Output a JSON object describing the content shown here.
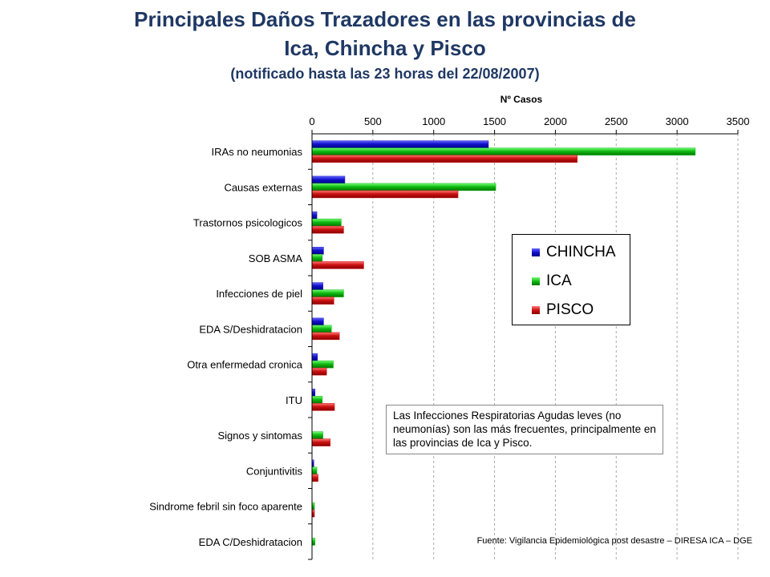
{
  "title_line1": "Principales Daños Trazadores en las provincias de",
  "title_line2": "Ica, Chincha y Pisco",
  "subtitle": "(notificado hasta las 23 horas del 22/08/2007)",
  "note": "Las Infecciones Respiratorias Agudas leves (no neumonías) son las más frecuentes, principalmente en las provincias de Ica y Pisco.",
  "source": "Fuente: Vigilancia Epidemiológica post desastre – DIRESA ICA – DGE",
  "chart_data": {
    "type": "bar",
    "orientation": "horizontal",
    "xlabel": "Nº Casos",
    "x_axis_position": "top",
    "xlim": [
      0,
      3500
    ],
    "xticks": [
      0,
      500,
      1000,
      1500,
      2000,
      2500,
      3000,
      3500
    ],
    "grid": true,
    "legend_position": "right",
    "categories": [
      "IRAs no neumonias",
      "Causas externas",
      "Trastornos psicologicos",
      "SOB ASMA",
      "Infecciones de piel",
      "EDA S/Deshidratacion",
      "Otra enfermedad cronica",
      "ITU",
      "Signos y sintomas",
      "Conjuntivitis",
      "Sindrome febril sin foco aparente",
      "EDA C/Deshidratacion"
    ],
    "series": [
      {
        "name": "CHINCHA",
        "color": "#1111cc",
        "values": [
          1450,
          270,
          40,
          95,
          90,
          95,
          45,
          25,
          0,
          15,
          0,
          0
        ]
      },
      {
        "name": "ICA",
        "color": "#11bb11",
        "values": [
          3150,
          1510,
          240,
          85,
          260,
          160,
          175,
          85,
          90,
          40,
          20,
          25
        ]
      },
      {
        "name": "PISCO",
        "color": "#cc1111",
        "values": [
          2180,
          1200,
          260,
          425,
          180,
          225,
          120,
          185,
          150,
          50,
          20,
          0
        ]
      }
    ]
  }
}
